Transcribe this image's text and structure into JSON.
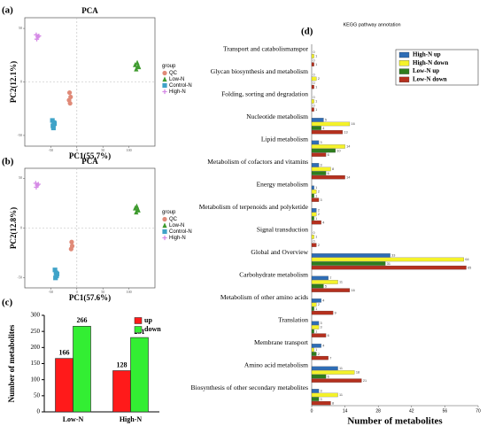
{
  "chart_data": [
    {
      "type": "scatter",
      "panel": "(a)",
      "title": "PCA",
      "x_label": "PC1(55.7%)",
      "y_label": "PC2(12.1%)",
      "legend_title": "group",
      "xlim": [
        -100,
        150
      ],
      "ylim": [
        -60,
        60
      ],
      "xticks": [
        -50,
        0,
        50,
        100
      ],
      "yticks": [
        -50,
        0,
        50
      ],
      "series": [
        {
          "name": "QC",
          "color": "#e08a78",
          "marker": "circle",
          "x": [
            -14,
            -12,
            -15,
            -13
          ],
          "values": [
            -10,
            -14,
            -17,
            -20
          ]
        },
        {
          "name": "Low-N",
          "color": "#3f9b2f",
          "marker": "triangle",
          "x": [
            112,
            116,
            119,
            114,
            118
          ],
          "values": [
            16,
            18,
            14,
            12,
            15
          ]
        },
        {
          "name": "Control-N",
          "color": "#3fa3c8",
          "marker": "square",
          "x": [
            -47,
            -44,
            -46,
            -45,
            -43
          ],
          "values": [
            -36,
            -38,
            -41,
            -43,
            -39
          ]
        },
        {
          "name": "High-N",
          "color": "#d58ae6",
          "marker": "plus",
          "x": [
            -78,
            -75,
            -77,
            -73
          ],
          "values": [
            44,
            42,
            40,
            43
          ]
        }
      ]
    },
    {
      "type": "scatter",
      "panel": "(b)",
      "title": "PCA",
      "x_label": "PC1(57.6%)",
      "y_label": "PC2(12.8%)",
      "legend_title": "group",
      "xlim": [
        -100,
        150
      ],
      "ylim": [
        -60,
        60
      ],
      "xticks": [
        -50,
        0,
        50,
        100
      ],
      "yticks": [
        -50,
        0,
        50
      ],
      "series": [
        {
          "name": "QC",
          "color": "#e08a78",
          "marker": "circle",
          "x": [
            -10,
            -9,
            -11
          ],
          "values": [
            -14,
            -18,
            -21
          ]
        },
        {
          "name": "Low-N",
          "color": "#3f9b2f",
          "marker": "triangle",
          "x": [
            112,
            115,
            118,
            114,
            117
          ],
          "values": [
            20,
            22,
            18,
            16,
            19
          ]
        },
        {
          "name": "Control-N",
          "color": "#3fa3c8",
          "marker": "square",
          "x": [
            -42,
            -40,
            -39,
            -41,
            -38
          ],
          "values": [
            -42,
            -45,
            -48,
            -50,
            -46
          ]
        },
        {
          "name": "High-N",
          "color": "#d58ae6",
          "marker": "plus",
          "x": [
            -79,
            -76,
            -78,
            -74
          ],
          "values": [
            45,
            43,
            41,
            44
          ]
        }
      ]
    },
    {
      "type": "bar",
      "panel": "(c)",
      "y_label": "Number of metabolites",
      "categories": [
        "Low-N",
        "High-N"
      ],
      "ylim": [
        0,
        300
      ],
      "yticks": [
        0,
        50,
        100,
        150,
        200,
        250,
        300
      ],
      "series": [
        {
          "name": "up",
          "color": "#ff1a1a",
          "values": [
            166,
            128
          ]
        },
        {
          "name": "down",
          "color": "#33ee33",
          "values": [
            266,
            231
          ]
        }
      ]
    },
    {
      "type": "hbar",
      "panel": "(d)",
      "title": "KEGG pathway annotation",
      "x_label": "Number of metabolites",
      "xlim": [
        0,
        70
      ],
      "xticks": [
        0,
        14,
        28,
        42,
        56,
        70
      ],
      "categories": [
        "Transport and catabolismanspor",
        "Glycan biosynthesis and metabolism",
        "Folding, sorting and degradation",
        "Nucleotide metabolism",
        "Lipid metabolism",
        "Metabolism of cofactors and vitamins",
        "Energy metabolism",
        "Metabolism of terpenoids and polyketide",
        "Signal transduction",
        "Global and Overview",
        "Carbohydrate metabolism",
        "Metabolism of other amino acids",
        "Translation",
        "Membrane transport",
        "Amino acid metabolism",
        "Biosynthesis of other secondary metabolites"
      ],
      "series": [
        {
          "name": "High-N up",
          "color": "#2e6db5",
          "values": [
            0,
            0,
            0,
            5,
            3,
            3,
            1,
            2,
            0,
            33,
            7,
            4,
            3,
            4,
            11,
            3
          ]
        },
        {
          "name": "High-N down",
          "color": "#f4f22a",
          "values": [
            1,
            2,
            1,
            16,
            14,
            8,
            2,
            2,
            1,
            64,
            11,
            2,
            3,
            1,
            18,
            11
          ]
        },
        {
          "name": "Low-N up",
          "color": "#2e7d1e",
          "values": [
            0,
            0,
            0,
            4,
            10,
            6,
            1,
            1,
            0,
            31,
            5,
            1,
            1,
            2,
            6,
            3
          ]
        },
        {
          "name": "Low-N down",
          "color": "#b5301e",
          "values": [
            1,
            1,
            1,
            13,
            6,
            14,
            3,
            4,
            2,
            65,
            16,
            9,
            6,
            7,
            21,
            8
          ]
        }
      ]
    }
  ]
}
